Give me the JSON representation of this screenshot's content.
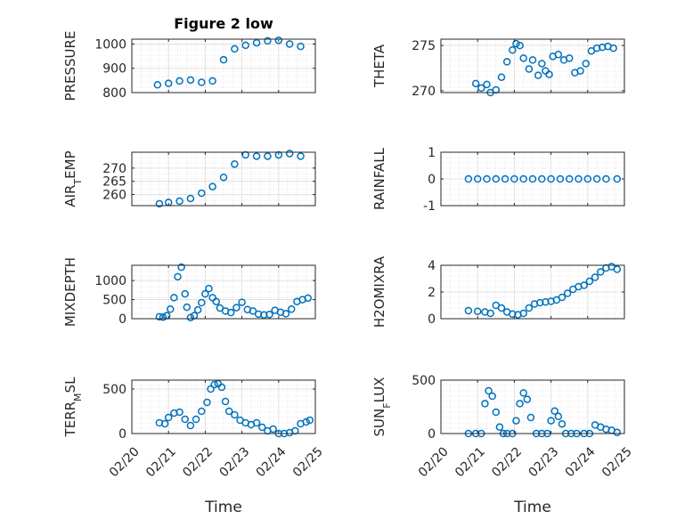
{
  "figure": {
    "title": "Figure 2 low"
  },
  "chart_data": [
    {
      "type": "scatter",
      "title": "Figure 2 low",
      "ylabel": "PRESSURE",
      "xlabel": "",
      "ylim": [
        800,
        1020
      ],
      "yticks": [
        800,
        900,
        1000
      ],
      "xlim": [
        0,
        5
      ],
      "x": [
        0.7,
        1.0,
        1.3,
        1.6,
        1.9,
        2.2,
        2.5,
        2.8,
        3.1,
        3.4,
        3.7,
        4.0,
        4.3,
        4.6
      ],
      "y": [
        832,
        838,
        848,
        852,
        842,
        848,
        935,
        980,
        995,
        1005,
        1013,
        1015,
        1000,
        990
      ]
    },
    {
      "type": "scatter",
      "ylabel": "THETA",
      "xlabel": "",
      "ylim": [
        269.8,
        275.7
      ],
      "yticks": [
        270,
        275
      ],
      "xlim": [
        0,
        5
      ],
      "x": [
        0.95,
        1.1,
        1.25,
        1.35,
        1.5,
        1.65,
        1.8,
        1.95,
        2.05,
        2.15,
        2.25,
        2.4,
        2.5,
        2.65,
        2.75,
        2.85,
        2.95,
        3.05,
        3.2,
        3.35,
        3.5,
        3.65,
        3.8,
        3.95,
        4.1,
        4.25,
        4.4,
        4.55,
        4.7
      ],
      "y": [
        270.8,
        270.3,
        270.7,
        269.8,
        270.1,
        271.5,
        273.2,
        274.5,
        275.2,
        275,
        273.6,
        272.4,
        273.4,
        271.7,
        273,
        272.2,
        271.8,
        273.8,
        274,
        273.4,
        273.6,
        272,
        272.2,
        273,
        274.4,
        274.7,
        274.8,
        274.9,
        274.7
      ]
    },
    {
      "type": "scatter",
      "ylabel": "AIR_TEMP",
      "xlabel": "",
      "ylim": [
        255.8,
        276
      ],
      "yticks": [
        260,
        265,
        270
      ],
      "xlim": [
        0,
        5
      ],
      "x": [
        0.75,
        1.0,
        1.3,
        1.6,
        1.9,
        2.2,
        2.5,
        2.8,
        3.1,
        3.4,
        3.7,
        4.0,
        4.3,
        4.6
      ],
      "y": [
        256.5,
        257,
        257.5,
        258.5,
        260.5,
        263,
        266.5,
        271.5,
        275,
        274.5,
        274.5,
        275,
        275.5,
        274.5
      ]
    },
    {
      "type": "scatter",
      "ylabel": "RAINFALL",
      "xlabel": "",
      "ylim": [
        -1,
        1
      ],
      "yticks": [
        -1,
        0,
        1
      ],
      "xlim": [
        0,
        5
      ],
      "x": [
        0.75,
        1.0,
        1.25,
        1.5,
        1.75,
        2.0,
        2.25,
        2.5,
        2.75,
        3.0,
        3.25,
        3.5,
        3.75,
        4.0,
        4.25,
        4.5,
        4.8
      ],
      "y": [
        0,
        0,
        0,
        0,
        0,
        0,
        0,
        0,
        0,
        0,
        0,
        0,
        0,
        0,
        0,
        0,
        0
      ]
    },
    {
      "type": "scatter",
      "ylabel": "MIXDEPTH",
      "xlabel": "",
      "ylim": [
        0,
        1400
      ],
      "yticks": [
        0,
        500,
        1000
      ],
      "xlim": [
        0,
        5
      ],
      "x": [
        0.75,
        0.85,
        0.95,
        1.05,
        1.15,
        1.25,
        1.35,
        1.45,
        1.5,
        1.6,
        1.7,
        1.8,
        1.9,
        2.0,
        2.1,
        2.2,
        2.3,
        2.4,
        2.55,
        2.7,
        2.85,
        3.0,
        3.15,
        3.3,
        3.45,
        3.6,
        3.75,
        3.9,
        4.05,
        4.2,
        4.35,
        4.5,
        4.65,
        4.8
      ],
      "y": [
        50,
        40,
        80,
        250,
        550,
        1100,
        1350,
        650,
        300,
        30,
        80,
        230,
        420,
        650,
        790,
        550,
        450,
        280,
        200,
        160,
        290,
        430,
        240,
        200,
        120,
        100,
        110,
        220,
        170,
        130,
        250,
        450,
        500,
        540
      ]
    },
    {
      "type": "scatter",
      "ylabel": "H2OMIXRA",
      "xlabel": "",
      "ylim": [
        0,
        4
      ],
      "yticks": [
        0,
        2,
        4
      ],
      "xlim": [
        0,
        5
      ],
      "x": [
        0.75,
        1.0,
        1.2,
        1.35,
        1.5,
        1.65,
        1.8,
        1.95,
        2.1,
        2.25,
        2.4,
        2.55,
        2.7,
        2.85,
        3.0,
        3.15,
        3.3,
        3.45,
        3.6,
        3.75,
        3.9,
        4.05,
        4.2,
        4.35,
        4.5,
        4.65,
        4.8
      ],
      "y": [
        0.6,
        0.55,
        0.5,
        0.4,
        1.0,
        0.8,
        0.5,
        0.35,
        0.3,
        0.4,
        0.8,
        1.1,
        1.2,
        1.25,
        1.3,
        1.4,
        1.6,
        1.9,
        2.2,
        2.4,
        2.5,
        2.8,
        3.1,
        3.5,
        3.8,
        3.9,
        3.7
      ]
    },
    {
      "type": "scatter",
      "ylabel": "TERR_MSL",
      "xlabel": "Time",
      "ylim": [
        0,
        600
      ],
      "yticks": [
        0,
        500
      ],
      "xlim": [
        0,
        5
      ],
      "xticks": [
        "02/20",
        "02/21",
        "02/22",
        "02/23",
        "02/24",
        "02/25"
      ],
      "x": [
        0.75,
        0.9,
        1.0,
        1.15,
        1.3,
        1.45,
        1.6,
        1.75,
        1.9,
        2.05,
        2.15,
        2.25,
        2.35,
        2.45,
        2.55,
        2.65,
        2.8,
        2.95,
        3.1,
        3.25,
        3.4,
        3.55,
        3.7,
        3.85,
        4.0,
        4.15,
        4.3,
        4.45,
        4.6,
        4.75,
        4.85
      ],
      "y": [
        120,
        110,
        180,
        230,
        240,
        160,
        90,
        160,
        250,
        350,
        500,
        550,
        560,
        520,
        360,
        250,
        210,
        150,
        120,
        100,
        120,
        70,
        30,
        50,
        0,
        0,
        10,
        30,
        110,
        130,
        150
      ]
    },
    {
      "type": "scatter",
      "ylabel": "SUN_FLUX",
      "xlabel": "Time",
      "ylim": [
        0,
        500
      ],
      "yticks": [
        0,
        500
      ],
      "xlim": [
        0,
        5
      ],
      "xticks": [
        "02/20",
        "02/21",
        "02/22",
        "02/23",
        "02/24",
        "02/25"
      ],
      "x": [
        0.75,
        0.95,
        1.1,
        1.2,
        1.3,
        1.4,
        1.5,
        1.6,
        1.7,
        1.8,
        1.95,
        2.05,
        2.15,
        2.25,
        2.35,
        2.45,
        2.6,
        2.75,
        2.9,
        3.0,
        3.1,
        3.2,
        3.3,
        3.4,
        3.55,
        3.7,
        3.9,
        4.05,
        4.2,
        4.35,
        4.5,
        4.65,
        4.8
      ],
      "y": [
        0,
        0,
        0,
        280,
        400,
        350,
        200,
        60,
        0,
        0,
        0,
        120,
        280,
        380,
        320,
        150,
        0,
        0,
        0,
        120,
        210,
        160,
        90,
        0,
        0,
        0,
        0,
        0,
        80,
        60,
        40,
        30,
        10
      ]
    }
  ]
}
